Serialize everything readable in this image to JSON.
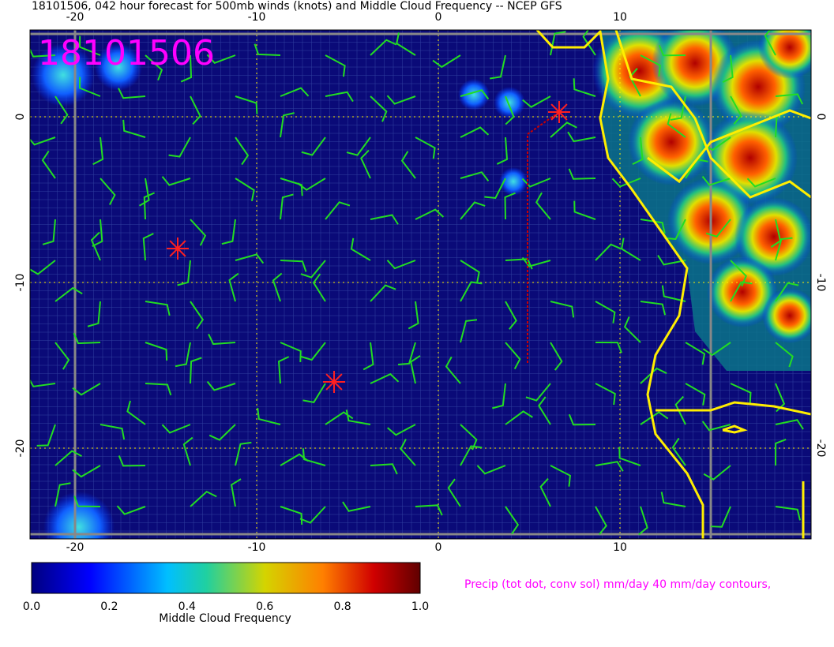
{
  "header": {
    "title": "18101506, 042 hour forecast for 500mb winds (knots) and Middle Cloud Frequency -- NCEP GFS",
    "stamp": "18101506"
  },
  "map": {
    "lon_labels": [
      "-20",
      "-10",
      "0",
      "10"
    ],
    "lat_labels": [
      "0",
      "-10",
      "-20"
    ]
  },
  "colorbar": {
    "tick_labels": [
      "0.0",
      "0.2",
      "0.4",
      "0.6",
      "0.8",
      "1.0"
    ],
    "label": "Middle Cloud Frequency"
  },
  "caption": "Precip (tot dot, conv sol) mm/day 40 mm/day contours,"
}
